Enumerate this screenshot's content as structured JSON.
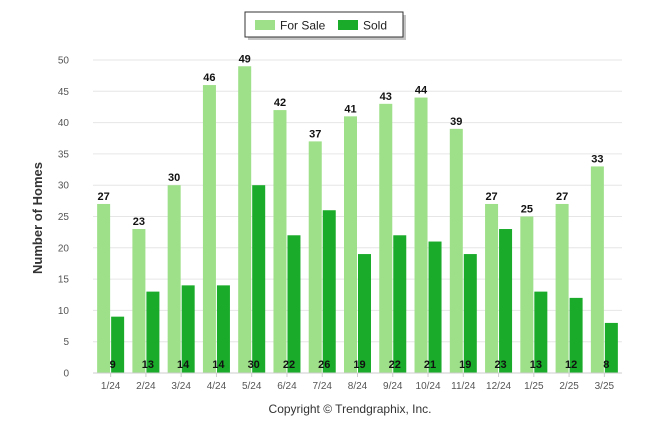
{
  "chart_data": {
    "type": "bar",
    "categories": [
      "1/24",
      "2/24",
      "3/24",
      "4/24",
      "5/24",
      "6/24",
      "7/24",
      "8/24",
      "9/24",
      "10/24",
      "11/24",
      "12/24",
      "1/25",
      "2/25",
      "3/25"
    ],
    "series": [
      {
        "name": "For Sale",
        "values": [
          27,
          23,
          30,
          46,
          49,
          42,
          37,
          41,
          43,
          44,
          39,
          27,
          25,
          27,
          33
        ],
        "color": "#9ee089"
      },
      {
        "name": "Sold",
        "values": [
          9,
          13,
          14,
          14,
          30,
          22,
          26,
          19,
          22,
          21,
          19,
          23,
          13,
          12,
          8
        ],
        "color": "#1aab2a"
      }
    ],
    "ylabel": "Number of Homes",
    "ylim": [
      0,
      50
    ],
    "yticks": [
      0,
      5,
      10,
      15,
      20,
      25,
      30,
      35,
      40,
      45,
      50
    ],
    "grid": true,
    "legend_position": "top-center"
  },
  "footer": {
    "copyright": "Copyright © Trendgraphix, Inc."
  }
}
